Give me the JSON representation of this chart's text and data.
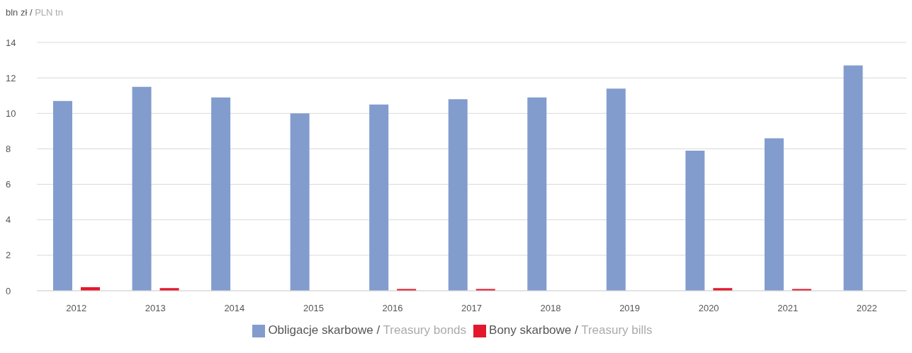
{
  "chart_data": {
    "type": "bar",
    "ylabel": "bln zł / PLN tn",
    "categories": [
      "2012",
      "2013",
      "2014",
      "2015",
      "2016",
      "2017",
      "2018",
      "2019",
      "2020",
      "2021",
      "2022"
    ],
    "series": [
      {
        "name": "Obligacje skarbowe / Treasury bonds",
        "color": "#829cce",
        "values": [
          10.7,
          11.5,
          10.9,
          10.0,
          10.5,
          10.8,
          10.9,
          11.4,
          7.9,
          8.6,
          12.7
        ]
      },
      {
        "name": "Bony skarbowe / Treasury bills",
        "color": "#e3182d",
        "values": [
          0.2,
          0.15,
          0,
          0,
          0.1,
          0.1,
          0,
          0,
          0.15,
          0.1,
          0
        ]
      }
    ],
    "ylim": [
      0,
      14
    ],
    "yticks": [
      0,
      2,
      4,
      6,
      8,
      10,
      12,
      14
    ],
    "grid": "y",
    "legend": "bottom"
  }
}
